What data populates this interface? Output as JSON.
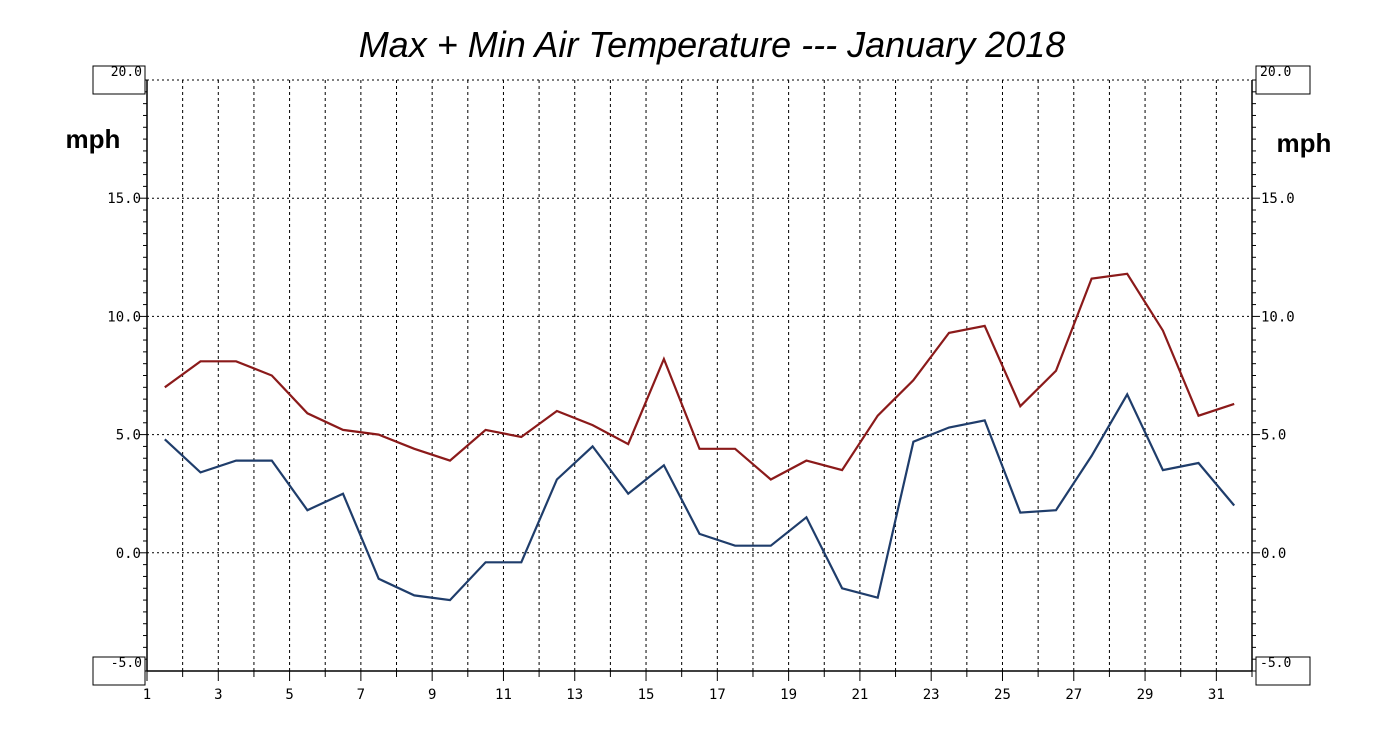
{
  "chart_data": {
    "type": "line",
    "title": "Max + Min Air Temperature --- January 2018",
    "ylabel_left": "mph",
    "ylabel_right": "mph",
    "xlim": [
      1,
      32
    ],
    "ylim": [
      -5,
      20
    ],
    "x_tick_labels": [
      "1",
      "3",
      "5",
      "7",
      "9",
      "11",
      "13",
      "15",
      "17",
      "19",
      "21",
      "23",
      "25",
      "27",
      "29",
      "31"
    ],
    "y_tick_labels": [
      "20.0",
      "15.0",
      "10.0",
      "5.0",
      "0.0",
      "-5.0"
    ],
    "y_tick_values": [
      20,
      15,
      10,
      5,
      0,
      -5
    ],
    "grid": true,
    "x": [
      1.5,
      2.5,
      3.5,
      4.5,
      5.5,
      6.5,
      7.5,
      8.5,
      9.5,
      10.5,
      11.5,
      12.5,
      13.5,
      14.5,
      15.5,
      16.5,
      17.5,
      18.5,
      19.5,
      20.5,
      21.5,
      22.5,
      23.5,
      24.5,
      25.5,
      26.5,
      27.5,
      28.5,
      29.5,
      30.5,
      31.5
    ],
    "series": [
      {
        "color": "#8b1a1a",
        "values": [
          7.0,
          8.1,
          8.1,
          7.5,
          5.9,
          5.2,
          5.0,
          4.4,
          3.9,
          5.2,
          4.9,
          6.0,
          5.4,
          4.6,
          8.2,
          4.4,
          4.4,
          3.1,
          3.9,
          3.5,
          5.8,
          7.3,
          9.3,
          9.6,
          6.2,
          7.7,
          11.6,
          11.8,
          9.4,
          5.8,
          6.3
        ]
      },
      {
        "color": "#1f3d6b",
        "values": [
          4.8,
          3.4,
          3.9,
          3.9,
          1.8,
          2.5,
          -1.1,
          -1.8,
          -2.0,
          -0.4,
          -0.4,
          3.1,
          4.5,
          2.5,
          3.7,
          0.8,
          0.3,
          0.3,
          1.5,
          -1.5,
          -1.9,
          4.7,
          5.3,
          5.6,
          1.7,
          1.8,
          4.1,
          6.7,
          3.5,
          3.8,
          2.0
        ]
      }
    ]
  }
}
